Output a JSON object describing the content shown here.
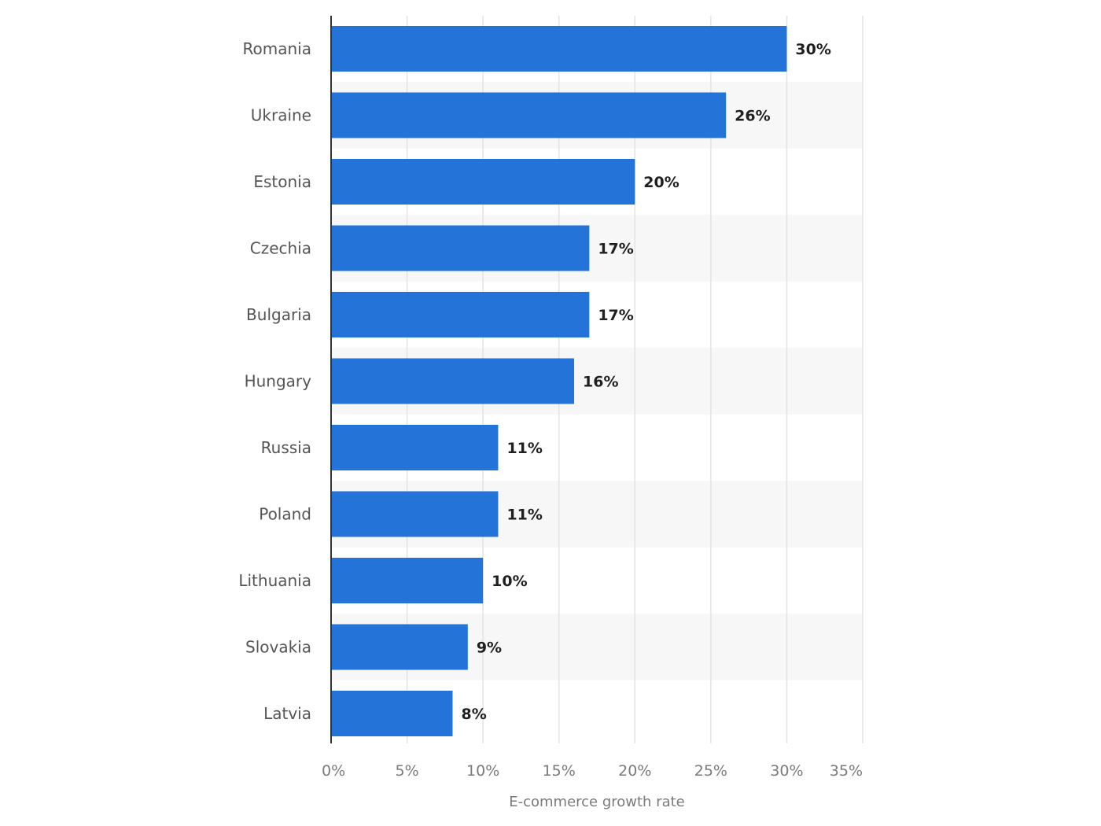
{
  "chart_data": {
    "type": "bar",
    "orientation": "horizontal",
    "categories": [
      "Romania",
      "Ukraine",
      "Estonia",
      "Czechia",
      "Bulgaria",
      "Hungary",
      "Russia",
      "Poland",
      "Lithuania",
      "Slovakia",
      "Latvia"
    ],
    "values": [
      30,
      26,
      20,
      17,
      17,
      16,
      11,
      11,
      10,
      9,
      8
    ],
    "data_labels": [
      "30%",
      "26%",
      "20%",
      "17%",
      "17%",
      "16%",
      "11%",
      "11%",
      "10%",
      "9%",
      "8%"
    ],
    "xlabel": "E-commerce growth rate",
    "xlim": [
      0,
      35
    ],
    "xticks": [
      0,
      5,
      10,
      15,
      20,
      25,
      30,
      35
    ],
    "xtick_labels": [
      "0%",
      "5%",
      "10%",
      "15%",
      "20%",
      "25%",
      "30%",
      "35%"
    ],
    "grid": "vertical",
    "bar_color": "#2473d8",
    "band_color": "#f7f7f7",
    "grid_color": "#e3e3e3",
    "axis_color": "#333333"
  }
}
